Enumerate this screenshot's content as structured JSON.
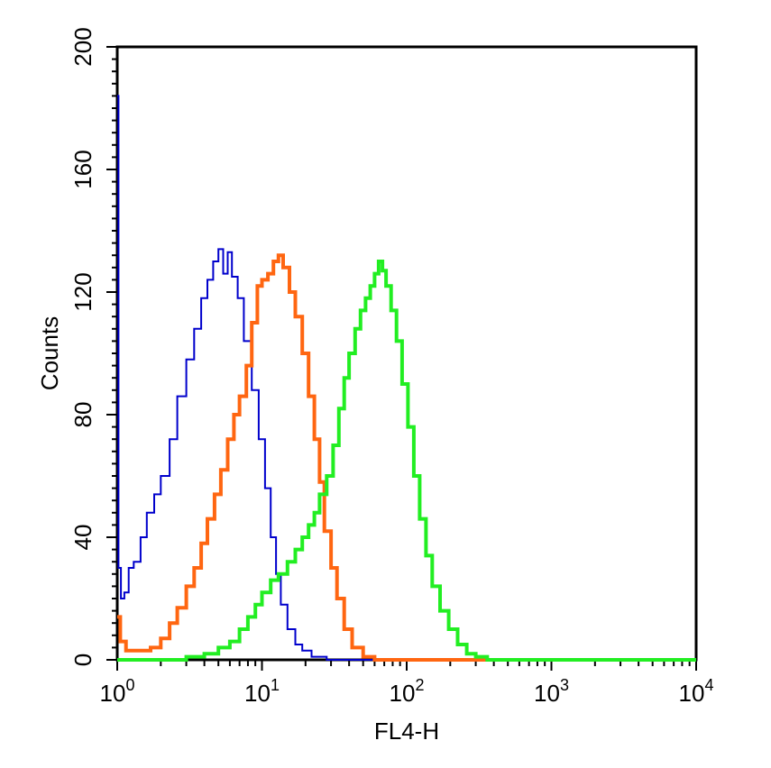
{
  "chart_data": {
    "type": "line",
    "xlabel": "FL4-H",
    "ylabel": "Counts",
    "x_scale": "log",
    "xlim": [
      1,
      10000
    ],
    "ylim": [
      0,
      200
    ],
    "x_ticks": [
      {
        "base": "10",
        "exp": "0"
      },
      {
        "base": "10",
        "exp": "1"
      },
      {
        "base": "10",
        "exp": "2"
      },
      {
        "base": "10",
        "exp": "3"
      },
      {
        "base": "10",
        "exp": "4"
      }
    ],
    "y_ticks": [
      "0",
      "40",
      "80",
      "120",
      "160",
      "200"
    ],
    "y_tick_values": [
      0,
      40,
      80,
      120,
      160,
      200
    ],
    "grid": false,
    "series": [
      {
        "color": "#0000cc",
        "points": [
          [
            1.0,
            184
          ],
          [
            1.02,
            30
          ],
          [
            1.06,
            20
          ],
          [
            1.12,
            22
          ],
          [
            1.2,
            30
          ],
          [
            1.3,
            32
          ],
          [
            1.45,
            40
          ],
          [
            1.6,
            48
          ],
          [
            1.8,
            54
          ],
          [
            2.0,
            60
          ],
          [
            2.3,
            72
          ],
          [
            2.6,
            86
          ],
          [
            3.0,
            98
          ],
          [
            3.4,
            108
          ],
          [
            3.8,
            118
          ],
          [
            4.2,
            124
          ],
          [
            4.6,
            130
          ],
          [
            5.0,
            134
          ],
          [
            5.4,
            126
          ],
          [
            5.8,
            133
          ],
          [
            6.2,
            125
          ],
          [
            6.8,
            118
          ],
          [
            7.5,
            104
          ],
          [
            8.5,
            88
          ],
          [
            9.5,
            72
          ],
          [
            10.5,
            56
          ],
          [
            11.5,
            40
          ],
          [
            12.5,
            28
          ],
          [
            13.5,
            18
          ],
          [
            15.0,
            10
          ],
          [
            17.0,
            5
          ],
          [
            19.0,
            3
          ],
          [
            22.0,
            1
          ],
          [
            28.0,
            0
          ],
          [
            40.0,
            0
          ],
          [
            10000,
            0
          ]
        ]
      },
      {
        "color": "#ff6611",
        "points": [
          [
            1.0,
            14
          ],
          [
            1.05,
            6
          ],
          [
            1.15,
            3
          ],
          [
            1.4,
            3
          ],
          [
            1.7,
            4
          ],
          [
            2.0,
            7
          ],
          [
            2.3,
            12
          ],
          [
            2.6,
            17
          ],
          [
            3.0,
            24
          ],
          [
            3.4,
            30
          ],
          [
            3.8,
            38
          ],
          [
            4.2,
            46
          ],
          [
            4.7,
            54
          ],
          [
            5.2,
            62
          ],
          [
            5.8,
            72
          ],
          [
            6.4,
            80
          ],
          [
            7.0,
            86
          ],
          [
            7.8,
            96
          ],
          [
            8.5,
            110
          ],
          [
            9.3,
            122
          ],
          [
            10.0,
            124
          ],
          [
            11.0,
            126
          ],
          [
            12.0,
            130
          ],
          [
            13.0,
            132
          ],
          [
            14.0,
            128
          ],
          [
            15.5,
            120
          ],
          [
            17.0,
            112
          ],
          [
            19.0,
            100
          ],
          [
            21.0,
            86
          ],
          [
            23.0,
            72
          ],
          [
            25.0,
            58
          ],
          [
            27.0,
            42
          ],
          [
            30.0,
            30
          ],
          [
            33.0,
            20
          ],
          [
            37.0,
            10
          ],
          [
            42.0,
            4
          ],
          [
            50.0,
            1
          ],
          [
            60.0,
            0
          ],
          [
            10000,
            0
          ]
        ]
      },
      {
        "color": "#22ee22",
        "points": [
          [
            1.0,
            0
          ],
          [
            2.0,
            0
          ],
          [
            3.0,
            1
          ],
          [
            4.0,
            2
          ],
          [
            5.0,
            4
          ],
          [
            6.0,
            6
          ],
          [
            7.0,
            10
          ],
          [
            8.0,
            14
          ],
          [
            9.0,
            18
          ],
          [
            10.0,
            22
          ],
          [
            11.5,
            26
          ],
          [
            13.0,
            28
          ],
          [
            15.0,
            32
          ],
          [
            17.0,
            36
          ],
          [
            19.0,
            40
          ],
          [
            21.0,
            44
          ],
          [
            23.0,
            48
          ],
          [
            25.0,
            54
          ],
          [
            28.0,
            60
          ],
          [
            31.0,
            70
          ],
          [
            34.0,
            82
          ],
          [
            37.0,
            92
          ],
          [
            40.0,
            100
          ],
          [
            44.0,
            108
          ],
          [
            48.0,
            114
          ],
          [
            52.0,
            118
          ],
          [
            56.0,
            122
          ],
          [
            60.0,
            126
          ],
          [
            64.0,
            130
          ],
          [
            68.0,
            127
          ],
          [
            72.0,
            122
          ],
          [
            78.0,
            114
          ],
          [
            85.0,
            104
          ],
          [
            93.0,
            90
          ],
          [
            102.0,
            76
          ],
          [
            112.0,
            60
          ],
          [
            123.0,
            46
          ],
          [
            136.0,
            34
          ],
          [
            150.0,
            24
          ],
          [
            170.0,
            16
          ],
          [
            195.0,
            10
          ],
          [
            225.0,
            5
          ],
          [
            260.0,
            2
          ],
          [
            300.0,
            1
          ],
          [
            360.0,
            0
          ],
          [
            10000,
            0
          ]
        ]
      }
    ]
  }
}
